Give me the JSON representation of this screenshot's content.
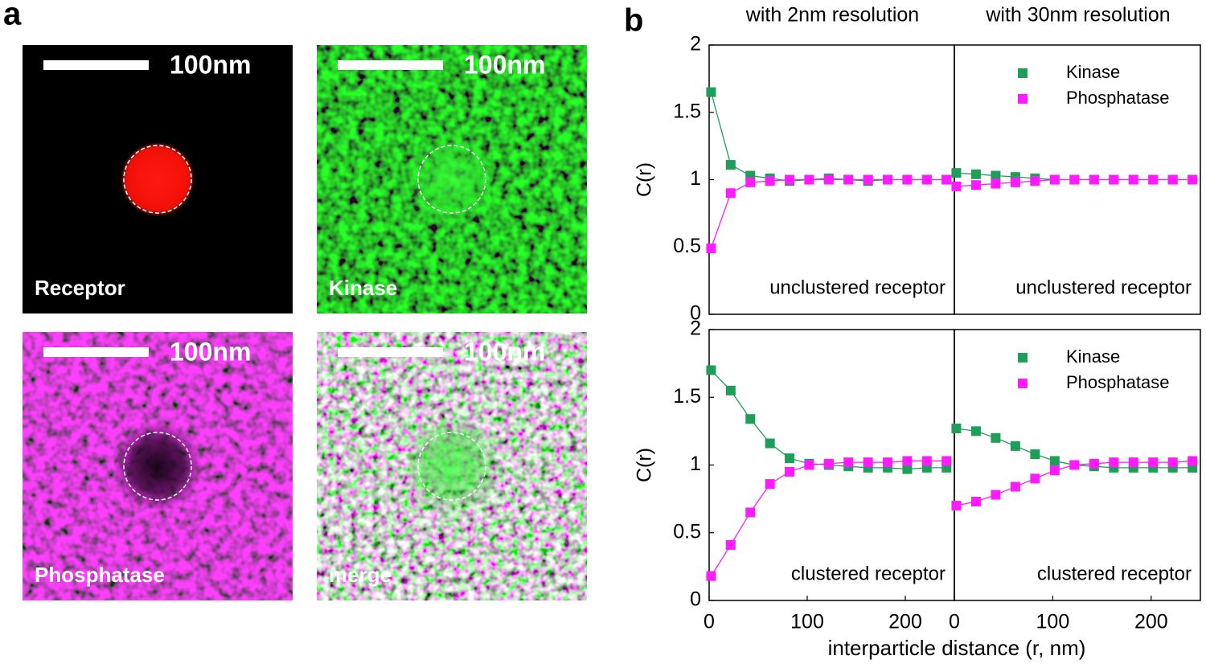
{
  "panel_labels": [
    "a",
    "b"
  ],
  "images": [
    {
      "label": "Receptor",
      "scale_label": "100nm"
    },
    {
      "label": "Kinase",
      "scale_label": "100nm"
    },
    {
      "label": "Phosphatase",
      "scale_label": "100nm"
    },
    {
      "label": "merge",
      "scale_label": "100nm"
    }
  ],
  "chart_data": [
    {
      "type": "line",
      "title": "with 2nm resolution",
      "y_label": "C(r)",
      "annotation": "unclustered receptor",
      "x": [
        2,
        22,
        42,
        62,
        82,
        102,
        122,
        142,
        162,
        182,
        202,
        222,
        242
      ],
      "xlim": [
        0,
        250
      ],
      "ylim": [
        0,
        2
      ],
      "yticks": [
        0,
        0.5,
        1,
        1.5,
        2
      ],
      "series": [
        {
          "color": "#1f9e5a",
          "values": [
            1.65,
            1.11,
            1.03,
            1.01,
            0.99,
            1.0,
            1.01,
            1.0,
            0.99,
            1.0,
            1.0,
            1.0,
            1.0
          ]
        },
        {
          "color": "#ff1aff",
          "values": [
            0.49,
            0.9,
            0.98,
            0.99,
            1.0,
            1.0,
            1.0,
            1.0,
            1.0,
            1.0,
            1.0,
            1.0,
            1.0
          ]
        }
      ]
    },
    {
      "type": "line",
      "title": "with 30nm resolution",
      "annotation": "unclustered receptor",
      "legend": "upper right",
      "x": [
        2,
        22,
        42,
        62,
        82,
        102,
        122,
        142,
        162,
        182,
        202,
        222,
        242
      ],
      "xlim": [
        0,
        250
      ],
      "ylim": [
        0,
        2
      ],
      "series": [
        {
          "name": "Kinase",
          "color": "#1f9e5a",
          "values": [
            1.05,
            1.04,
            1.03,
            1.02,
            1.01,
            1.0,
            1.0,
            1.0,
            1.0,
            1.0,
            1.0,
            1.0,
            1.0
          ]
        },
        {
          "name": "Phosphatase",
          "color": "#ff1aff",
          "values": [
            0.95,
            0.96,
            0.97,
            0.98,
            0.99,
            1.0,
            1.0,
            1.0,
            1.0,
            1.0,
            1.0,
            1.0,
            1.0
          ]
        }
      ]
    },
    {
      "type": "line",
      "y_label": "C(r)",
      "annotation": "clustered receptor",
      "x_label": "interparticle distance (r, nm)",
      "x": [
        2,
        22,
        42,
        62,
        82,
        102,
        122,
        142,
        162,
        182,
        202,
        222,
        242
      ],
      "xlim": [
        0,
        250
      ],
      "ylim": [
        0,
        2
      ],
      "yticks": [
        0,
        0.5,
        1,
        1.5,
        2
      ],
      "xticks": [
        0,
        100,
        200
      ],
      "series": [
        {
          "color": "#1f9e5a",
          "values": [
            1.7,
            1.55,
            1.34,
            1.16,
            1.05,
            1.01,
            1.0,
            0.99,
            0.98,
            0.98,
            0.97,
            0.98,
            0.98
          ]
        },
        {
          "color": "#ff1aff",
          "values": [
            0.18,
            0.41,
            0.65,
            0.86,
            0.95,
            1.0,
            1.01,
            1.02,
            1.02,
            1.02,
            1.03,
            1.03,
            1.03
          ]
        }
      ]
    },
    {
      "type": "line",
      "annotation": "clustered receptor",
      "legend": "upper right",
      "x": [
        2,
        22,
        42,
        62,
        82,
        102,
        122,
        142,
        162,
        182,
        202,
        222,
        242
      ],
      "xlim": [
        0,
        250
      ],
      "ylim": [
        0,
        2
      ],
      "xticks": [
        0,
        100,
        200
      ],
      "series": [
        {
          "name": "Kinase",
          "color": "#1f9e5a",
          "values": [
            1.27,
            1.25,
            1.2,
            1.14,
            1.08,
            1.03,
            1.0,
            0.99,
            0.98,
            0.98,
            0.98,
            0.98,
            0.98
          ]
        },
        {
          "name": "Phosphatase",
          "color": "#ff1aff",
          "values": [
            0.7,
            0.73,
            0.78,
            0.84,
            0.9,
            0.96,
            1.0,
            1.01,
            1.02,
            1.02,
            1.02,
            1.02,
            1.03
          ]
        }
      ]
    }
  ]
}
